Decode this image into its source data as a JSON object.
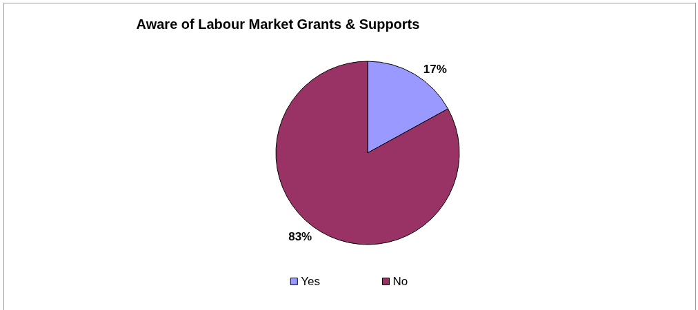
{
  "chart_data": {
    "type": "pie",
    "title": "Aware of Labour Market Grants & Supports",
    "categories": [
      "Yes",
      "No"
    ],
    "values": [
      17,
      83
    ],
    "colors": [
      "#9999ff",
      "#993366"
    ],
    "value_labels": [
      "17%",
      "83%"
    ],
    "legend": "bottom"
  }
}
